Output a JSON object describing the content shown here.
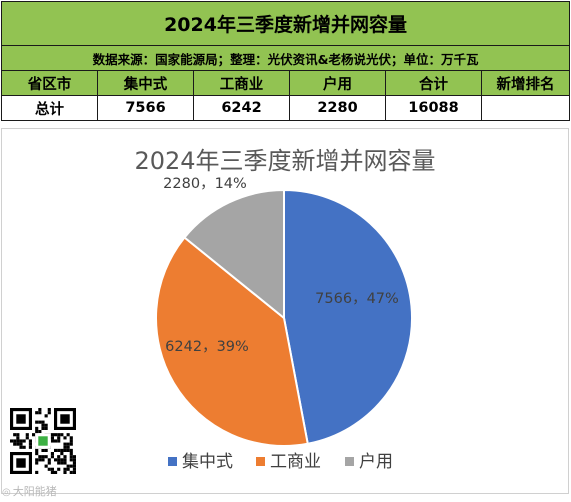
{
  "header": {
    "title": "2024年三季度新增并网容量",
    "source": "数据来源：国家能源局；整理：光伏资讯&老杨说光伏；单位：万千瓦",
    "columns": [
      "省区市",
      "集中式",
      "工商业",
      "户用",
      "合计",
      "新增排名"
    ],
    "total_row": {
      "region": "总计",
      "centralized": "7566",
      "commercial": "6242",
      "residential": "2280",
      "total": "16088",
      "rank": ""
    }
  },
  "chart_data": {
    "type": "pie",
    "title": "2024年三季度新增并网容量",
    "categories": [
      "集中式",
      "工商业",
      "户用"
    ],
    "values": [
      7566,
      6242,
      2280
    ],
    "percent_labels": [
      "47%",
      "39%",
      "14%"
    ],
    "data_labels": [
      "7566，47%",
      "6242，39%",
      "2280，14%"
    ],
    "colors": [
      "#4472c4",
      "#ed7d31",
      "#a5a5a5"
    ],
    "legend_position": "bottom"
  },
  "watermark": {
    "text": "大阳能猪"
  }
}
